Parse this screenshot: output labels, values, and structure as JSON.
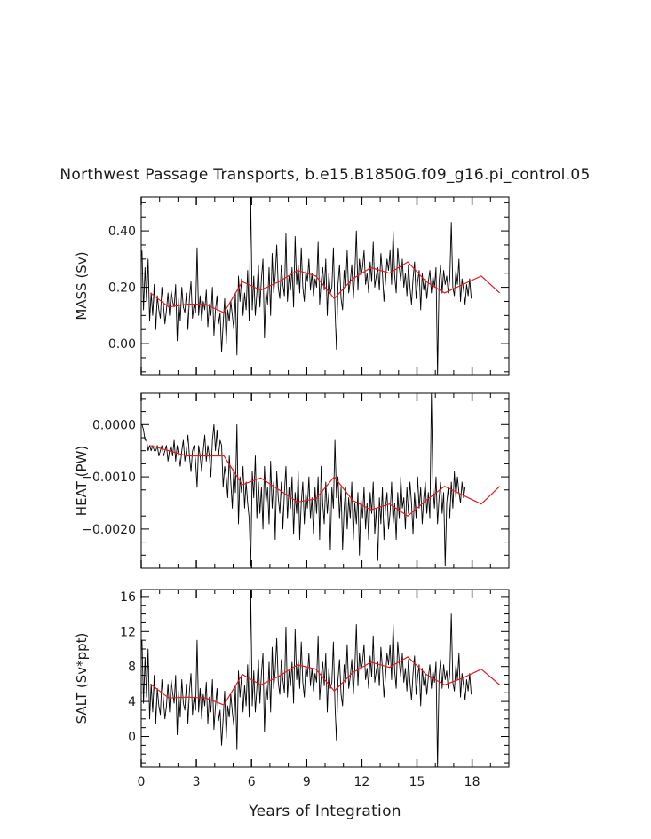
{
  "figure": {
    "title": "Northwest Passage Transports, b.e15.B1850G.f09_g16.pi_control.05",
    "xlabel": "Years of Integration"
  },
  "chart_data": [
    {
      "type": "line",
      "title": "",
      "xlabel": "Years of Integration",
      "ylabel": "MASS (Sv)",
      "xlim": [
        0,
        20
      ],
      "ylim": [
        -0.11,
        0.52
      ],
      "xticks": [
        0,
        3,
        6,
        9,
        12,
        15,
        18
      ],
      "xtick_labels": [
        "0",
        "3",
        "6",
        "9",
        "12",
        "15",
        "18"
      ],
      "yticks": [
        0.0,
        0.2,
        0.4
      ],
      "ytick_labels": [
        "0.00",
        "0.20",
        "0.40"
      ],
      "grid": false,
      "colors": {
        "monthly": "#000000",
        "annual": "#e8191c"
      },
      "series": [
        {
          "role": "monthly",
          "x_start": 0.042,
          "x_step": 0.0833,
          "values": [
            0.33,
            0.12,
            0.27,
            0.15,
            0.3,
            0.08,
            0.18,
            0.1,
            0.21,
            0.05,
            0.17,
            0.12,
            0.09,
            0.2,
            0.14,
            0.07,
            0.12,
            0.18,
            0.1,
            0.19,
            0.15,
            0.13,
            0.21,
            0.01,
            0.16,
            0.08,
            0.2,
            0.13,
            0.11,
            0.18,
            0.05,
            0.16,
            0.22,
            0.09,
            0.14,
            0.11,
            0.34,
            0.1,
            0.17,
            0.08,
            0.15,
            0.12,
            0.19,
            0.06,
            0.14,
            0.1,
            0.2,
            0.03,
            0.12,
            0.17,
            0.07,
            0.11,
            -0.03,
            0.07,
            0.16,
            0.0,
            0.12,
            0.08,
            0.15,
            0.1,
            0.05,
            0.18,
            -0.04,
            0.24,
            0.15,
            0.23,
            0.1,
            0.18,
            0.12,
            0.26,
            0.08,
            0.52,
            0.12,
            0.24,
            0.1,
            0.18,
            0.28,
            0.13,
            0.23,
            0.3,
            0.02,
            0.19,
            0.14,
            0.27,
            0.1,
            0.32,
            0.18,
            0.24,
            0.35,
            0.2,
            0.16,
            0.28,
            0.21,
            0.17,
            0.39,
            0.15,
            0.24,
            0.19,
            0.27,
            0.13,
            0.38,
            0.21,
            0.28,
            0.18,
            0.34,
            0.2,
            0.15,
            0.26,
            0.22,
            0.3,
            0.19,
            0.25,
            0.17,
            0.23,
            0.2,
            0.36,
            0.14,
            0.22,
            0.27,
            0.19,
            0.3,
            0.1,
            0.25,
            0.18,
            0.2,
            0.34,
            0.13,
            -0.02,
            0.21,
            0.28,
            0.16,
            0.12,
            0.26,
            0.2,
            0.33,
            0.18,
            0.22,
            0.28,
            0.16,
            0.25,
            0.4,
            0.19,
            0.3,
            0.24,
            0.27,
            0.33,
            0.21,
            0.25,
            0.18,
            0.29,
            0.22,
            0.36,
            0.2,
            0.24,
            0.27,
            0.19,
            0.32,
            0.25,
            0.15,
            0.22,
            0.3,
            0.26,
            0.33,
            0.21,
            0.4,
            0.24,
            0.18,
            0.34,
            0.27,
            0.22,
            0.3,
            0.2,
            0.25,
            0.17,
            0.28,
            0.2,
            0.14,
            0.23,
            0.29,
            0.16,
            0.22,
            0.26,
            0.12,
            0.25,
            0.19,
            0.23,
            0.16,
            0.22,
            0.26,
            0.18,
            0.24,
            0.2,
            0.27,
            -0.11,
            0.22,
            0.28,
            0.18,
            0.26,
            0.21,
            0.24,
            0.18,
            0.23,
            0.43,
            0.2,
            0.17,
            0.26,
            0.21,
            0.3,
            0.15,
            0.23,
            0.19,
            0.14,
            0.21,
            0.17,
            0.23,
            0.16
          ]
        },
        {
          "role": "annual",
          "x": [
            0.5,
            1.5,
            2.5,
            3.5,
            4.5,
            5.5,
            6.5,
            7.5,
            8.5,
            9.5,
            10.5,
            11.5,
            12.5,
            13.5,
            14.5,
            15.5,
            16.5,
            17.5,
            18.5,
            19.5
          ],
          "values": [
            0.18,
            0.13,
            0.14,
            0.14,
            0.11,
            0.22,
            0.19,
            0.22,
            0.26,
            0.24,
            0.16,
            0.23,
            0.27,
            0.25,
            0.29,
            0.22,
            0.18,
            0.21,
            0.24,
            0.18
          ]
        }
      ]
    },
    {
      "type": "line",
      "title": "",
      "xlabel": "Years of Integration",
      "ylabel": "HEAT (PW)",
      "xlim": [
        0,
        20
      ],
      "ylim": [
        -0.00275,
        0.0006
      ],
      "xticks": [
        0,
        3,
        6,
        9,
        12,
        15,
        18
      ],
      "xtick_labels": [
        "0",
        "3",
        "6",
        "9",
        "12",
        "15",
        "18"
      ],
      "yticks": [
        -0.002,
        -0.001,
        0.0
      ],
      "ytick_labels": [
        "−0.0020",
        "−0.0010",
        "0.0000"
      ],
      "grid": false,
      "colors": {
        "monthly": "#000000",
        "annual": "#e8191c"
      },
      "series": [
        {
          "role": "monthly",
          "x_start": 0.042,
          "x_step": 0.0833,
          "values": [
            0.0,
            -0.0001,
            -0.0003,
            -0.0003,
            -0.0005,
            -0.0004,
            -0.0005,
            -0.0004,
            -0.0005,
            -0.0005,
            -0.0004,
            -0.0006,
            -0.0005,
            -0.0004,
            -0.0006,
            -0.0005,
            -0.0004,
            -0.0007,
            -0.0005,
            -0.0004,
            -0.0006,
            -0.0003,
            -0.0007,
            -0.0004,
            -0.0006,
            -0.0008,
            -0.0005,
            -0.0003,
            -0.0007,
            -0.0005,
            -0.0002,
            -0.0006,
            -0.0009,
            -0.0005,
            -0.0004,
            -0.0007,
            -0.0012,
            -0.0004,
            -0.0006,
            -0.0009,
            -0.0005,
            -0.0002,
            -0.0007,
            -0.0004,
            -0.0006,
            -0.001,
            -0.0003,
            0.0,
            -0.0005,
            -0.0001,
            -0.0006,
            -0.0003,
            -0.0004,
            -0.0012,
            -0.0008,
            -0.001,
            -0.0014,
            -0.0006,
            -0.0011,
            -0.0016,
            -0.0008,
            -0.0013,
            0.0,
            -0.0019,
            -0.001,
            -0.0013,
            -0.0008,
            -0.0016,
            -0.0011,
            -0.0015,
            -0.0018,
            -0.0027,
            -0.0009,
            -0.0014,
            -0.0006,
            -0.0018,
            -0.0011,
            -0.0017,
            -0.0012,
            -0.002,
            -0.0008,
            -0.0015,
            -0.0012,
            -0.0019,
            -0.0007,
            -0.0016,
            -0.0011,
            -0.0022,
            -0.0009,
            -0.0014,
            -0.0017,
            -0.0011,
            -0.002,
            -0.0013,
            -0.0008,
            -0.0018,
            -0.0012,
            -0.0016,
            -0.001,
            -0.0021,
            -0.0013,
            -0.0017,
            -0.0009,
            -0.0022,
            -0.0015,
            -0.0011,
            -0.0019,
            -0.0013,
            -0.0016,
            -0.001,
            -0.0018,
            -0.0014,
            -0.0021,
            -0.0012,
            -0.0017,
            -0.001,
            -0.0022,
            -0.0008,
            -0.0015,
            -0.0019,
            -0.0011,
            -0.0017,
            -0.0013,
            -0.0024,
            -0.0012,
            -0.0016,
            -0.0003,
            -0.0014,
            -0.001,
            -0.0018,
            -0.0012,
            -0.0024,
            -0.0016,
            -0.0012,
            -0.002,
            -0.0014,
            -0.0018,
            -0.0011,
            -0.0022,
            -0.0015,
            -0.0019,
            -0.0013,
            -0.0025,
            -0.0014,
            -0.0018,
            -0.0012,
            -0.002,
            -0.0015,
            -0.0022,
            -0.0013,
            -0.0017,
            -0.0011,
            -0.0021,
            -0.0016,
            -0.0026,
            -0.0014,
            -0.0019,
            -0.0012,
            -0.0022,
            -0.0016,
            -0.0013,
            -0.002,
            -0.0017,
            -0.0011,
            -0.0019,
            -0.0015,
            -0.0022,
            -0.0013,
            -0.0018,
            -0.001,
            -0.0016,
            -0.0014,
            -0.002,
            -0.0012,
            -0.0017,
            -0.0011,
            -0.0015,
            -0.0021,
            -0.0013,
            -0.0018,
            -0.001,
            -0.0016,
            -0.0012,
            -0.0019,
            -0.0014,
            -0.0011,
            -0.0017,
            -0.0013,
            -0.0018,
            0.0006,
            -0.0012,
            -0.0016,
            -0.001,
            -0.0019,
            -0.0014,
            -0.0011,
            -0.0017,
            -0.0013,
            -0.0027,
            -0.0015,
            -0.0012,
            -0.0018,
            -0.0011,
            -0.0016,
            -0.0009,
            -0.0014,
            -0.001,
            -0.0013,
            -0.0015,
            -0.0011,
            -0.0014,
            -0.0012
          ]
        },
        {
          "role": "annual",
          "x": [
            0.5,
            1.5,
            2.5,
            3.5,
            4.5,
            5.5,
            6.5,
            7.5,
            8.5,
            9.5,
            10.5,
            11.5,
            12.5,
            13.5,
            14.5,
            15.5,
            16.5,
            17.5,
            18.5,
            19.5
          ],
          "values": [
            -0.0004,
            -0.0005,
            -0.0006,
            -0.0006,
            -0.0006,
            -0.00115,
            -0.00102,
            -0.00125,
            -0.00148,
            -0.00142,
            -0.001,
            -0.00145,
            -0.00163,
            -0.00152,
            -0.00175,
            -0.00145,
            -0.00118,
            -0.00135,
            -0.00152,
            -0.00118
          ]
        }
      ]
    },
    {
      "type": "line",
      "title": "",
      "xlabel": "Years of Integration",
      "ylabel": "SALT (Sv*ppt)",
      "xlim": [
        0,
        20
      ],
      "ylim": [
        -3.5,
        16.8
      ],
      "xticks": [
        0,
        3,
        6,
        9,
        12,
        15,
        18
      ],
      "xtick_labels": [
        "0",
        "3",
        "6",
        "9",
        "12",
        "15",
        "18"
      ],
      "yticks": [
        0,
        4,
        8,
        12,
        16
      ],
      "ytick_labels": [
        "0",
        "4",
        "8",
        "12",
        "16"
      ],
      "grid": false,
      "colors": {
        "monthly": "#000000",
        "annual": "#e8191c"
      },
      "series": [
        {
          "role": "monthly",
          "x_start": 0.042,
          "x_step": 0.0833,
          "values": [
            11.0,
            3.8,
            9.0,
            4.5,
            10.0,
            2.0,
            6.0,
            2.8,
            7.0,
            1.5,
            5.5,
            3.5,
            2.5,
            6.5,
            4.2,
            2.0,
            3.5,
            6.0,
            2.8,
            6.5,
            5.0,
            3.8,
            7.0,
            0.2,
            5.2,
            2.2,
            6.5,
            3.8,
            3.0,
            6.0,
            1.5,
            5.2,
            7.2,
            2.5,
            4.5,
            3.0,
            11.0,
            2.8,
            5.5,
            2.0,
            4.8,
            3.5,
            6.2,
            1.5,
            4.5,
            2.8,
            6.5,
            0.8,
            3.5,
            5.5,
            1.8,
            3.0,
            -1.0,
            2.0,
            5.2,
            -0.2,
            3.5,
            2.2,
            4.8,
            2.8,
            1.2,
            5.8,
            -1.5,
            7.5,
            4.5,
            7.0,
            2.8,
            5.8,
            3.5,
            8.2,
            2.2,
            16.8,
            3.5,
            7.5,
            2.8,
            5.5,
            8.8,
            3.8,
            7.2,
            9.5,
            0.5,
            6.0,
            4.2,
            8.5,
            2.8,
            10.2,
            5.5,
            7.5,
            11.2,
            6.2,
            4.8,
            8.8,
            6.5,
            5.0,
            12.5,
            4.5,
            7.5,
            5.8,
            8.5,
            3.8,
            12.2,
            6.5,
            8.8,
            5.5,
            10.8,
            6.2,
            4.5,
            8.2,
            6.8,
            9.5,
            5.8,
            7.8,
            5.2,
            7.2,
            6.2,
            11.5,
            4.2,
            6.8,
            8.5,
            5.8,
            9.5,
            2.8,
            7.8,
            5.5,
            6.2,
            10.8,
            3.8,
            -0.5,
            6.5,
            8.8,
            4.8,
            3.5,
            8.2,
            6.2,
            10.5,
            5.5,
            6.8,
            8.8,
            4.8,
            7.8,
            12.8,
            5.8,
            9.5,
            7.5,
            8.5,
            10.5,
            6.5,
            7.8,
            5.5,
            9.2,
            6.8,
            11.5,
            6.2,
            7.5,
            8.5,
            5.8,
            10.2,
            7.8,
            4.5,
            6.8,
            9.5,
            8.2,
            10.5,
            6.5,
            12.8,
            7.5,
            5.5,
            10.8,
            8.5,
            6.8,
            9.5,
            6.2,
            7.8,
            5.2,
            8.8,
            6.2,
            4.2,
            7.2,
            9.2,
            4.8,
            6.8,
            8.2,
            3.5,
            7.8,
            5.8,
            7.2,
            4.8,
            6.8,
            8.2,
            5.5,
            7.5,
            6.2,
            8.5,
            -3.5,
            6.8,
            8.8,
            5.5,
            8.2,
            6.5,
            7.5,
            5.5,
            7.2,
            14.0,
            6.2,
            5.2,
            8.2,
            6.5,
            9.5,
            4.5,
            7.2,
            5.8,
            4.2,
            6.5,
            5.2,
            7.2,
            4.8
          ]
        },
        {
          "role": "annual",
          "x": [
            0.5,
            1.5,
            2.5,
            3.5,
            4.5,
            5.5,
            6.5,
            7.5,
            8.5,
            9.5,
            10.5,
            11.5,
            12.5,
            13.5,
            14.5,
            15.5,
            16.5,
            17.5,
            18.5,
            19.5
          ],
          "values": [
            6.0,
            4.4,
            4.5,
            4.4,
            3.6,
            7.1,
            5.9,
            6.9,
            8.2,
            7.7,
            5.2,
            7.3,
            8.5,
            7.9,
            9.1,
            7.1,
            5.9,
            6.7,
            7.7,
            5.9
          ]
        }
      ]
    }
  ]
}
